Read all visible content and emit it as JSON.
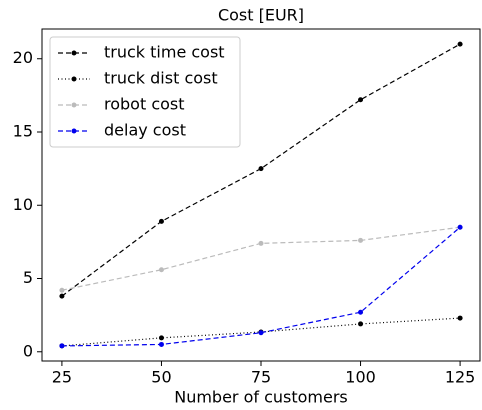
{
  "chart_data": {
    "type": "line",
    "title": "Cost [EUR]",
    "x_label": "Number of customers",
    "x": [
      25,
      50,
      75,
      100,
      125
    ],
    "series": [
      {
        "name": "truck time cost",
        "color": "#000000",
        "linestyle": "dashed",
        "values": [
          3.8,
          8.9,
          12.5,
          17.2,
          21.0
        ]
      },
      {
        "name": "truck dist cost",
        "color": "#000000",
        "linestyle": "dotted",
        "values": [
          0.4,
          0.95,
          1.35,
          1.9,
          2.3
        ]
      },
      {
        "name": "robot cost",
        "color": "#bbbbbb",
        "linestyle": "dashed",
        "values": [
          4.2,
          5.6,
          7.4,
          7.6,
          8.5
        ]
      },
      {
        "name": "delay cost",
        "color": "#0000ee",
        "linestyle": "dashed",
        "values": [
          0.4,
          0.5,
          1.3,
          2.7,
          8.5
        ]
      }
    ],
    "xlim": [
      20,
      130
    ],
    "xticks": [
      25,
      50,
      75,
      100,
      125
    ],
    "ylim": [
      -0.63,
      22.03
    ],
    "yticks": [
      0,
      5,
      10,
      15,
      20
    ],
    "grid": false,
    "legend": "upper-left"
  }
}
